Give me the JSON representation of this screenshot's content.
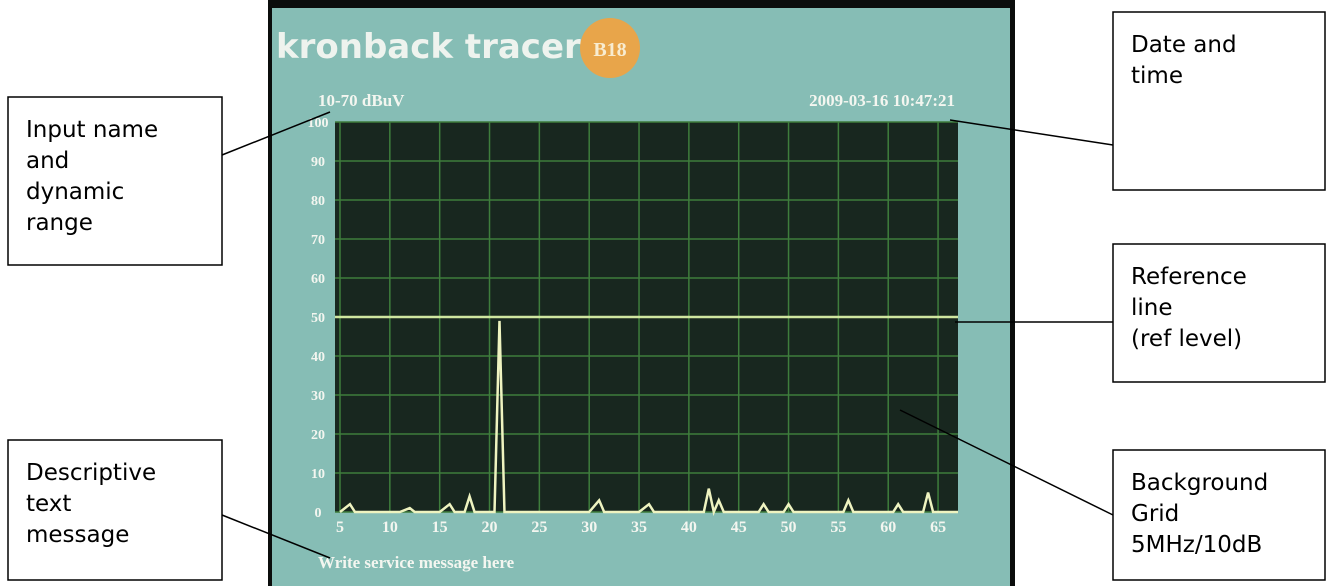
{
  "screen": {
    "logo": "kronback tracers",
    "badge": "B18",
    "input_name": "10-70 dBuV",
    "datetime": "2009-03-16 10:47:21",
    "message": "Write service message here"
  },
  "plot": {
    "xlim": [
      5,
      67
    ],
    "ylim": [
      0,
      100
    ],
    "xticks": [
      5,
      10,
      15,
      20,
      25,
      30,
      35,
      40,
      45,
      50,
      55,
      60,
      65
    ],
    "yticks": [
      0,
      10,
      20,
      30,
      40,
      50,
      60,
      70,
      80,
      90,
      100
    ],
    "ref_level": 50,
    "trace": {
      "x": [
        5,
        6,
        6.5,
        7,
        11,
        12,
        12.5,
        15,
        16,
        16.5,
        17.5,
        18,
        18.5,
        20.5,
        21,
        21.5,
        30,
        31,
        31.5,
        35,
        36,
        36.5,
        41.5,
        42,
        42.5,
        43,
        43.5,
        47,
        47.5,
        48,
        49.5,
        50,
        50.5,
        55.5,
        56,
        56.5,
        60.5,
        61,
        61.5,
        63.5,
        64,
        64.5,
        67
      ],
      "y": [
        0,
        2,
        0,
        0,
        0,
        1,
        0,
        0,
        2,
        0,
        0,
        4,
        0,
        0,
        49,
        0,
        0,
        3,
        0,
        0,
        2,
        0,
        0,
        6,
        0,
        3,
        0,
        0,
        2,
        0,
        0,
        2,
        0,
        0,
        3,
        0,
        0,
        2,
        0,
        0,
        5,
        0,
        0
      ]
    }
  },
  "callouts": [
    {
      "lines": [
        "Input name",
        "and",
        "dynamic",
        "range"
      ]
    },
    {
      "lines": [
        "Date and",
        "time"
      ]
    },
    {
      "lines": [
        "Reference",
        "line",
        "(ref level)"
      ]
    },
    {
      "lines": [
        "Background",
        "Grid",
        "5MHz/10dB"
      ]
    },
    {
      "lines": [
        "Descriptive",
        "text",
        "message"
      ]
    }
  ]
}
